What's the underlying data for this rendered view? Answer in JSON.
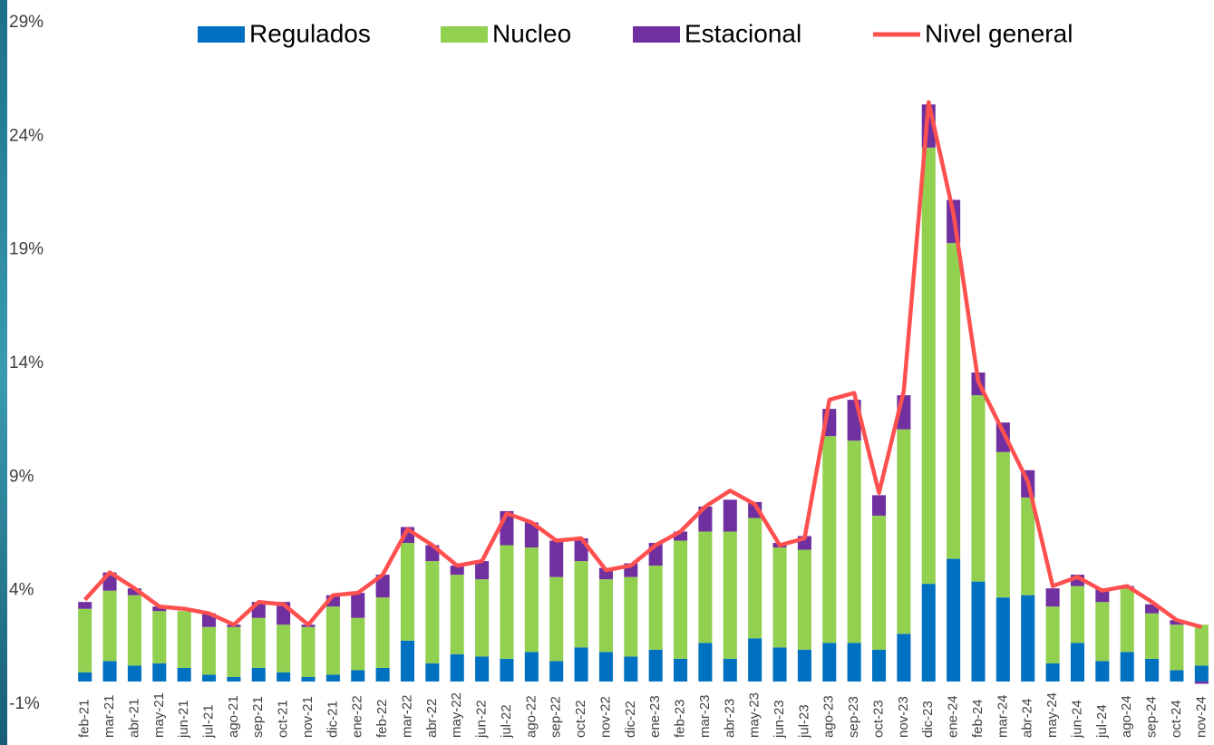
{
  "chart_data": {
    "type": "bar",
    "stacked": true,
    "legend": "top",
    "categories": [
      "feb-21",
      "mar-21",
      "abr-21",
      "may-21",
      "jun-21",
      "jul-21",
      "ago-21",
      "sep-21",
      "oct-21",
      "nov-21",
      "dic-21",
      "ene-22",
      "feb-22",
      "mar-22",
      "abr-22",
      "may-22",
      "jun-22",
      "jul-22",
      "ago-22",
      "sep-22",
      "oct-22",
      "nov-22",
      "dic-22",
      "ene-23",
      "feb-23",
      "mar-23",
      "abr-23",
      "may-23",
      "jun-23",
      "jul-23",
      "ago-23",
      "sep-23",
      "oct-23",
      "nov-23",
      "dic-23",
      "ene-24",
      "feb-24",
      "mar-24",
      "abr-24",
      "may-24",
      "jun-24",
      "jul-24",
      "ago-24",
      "sep-24",
      "oct-24",
      "nov-24"
    ],
    "series": [
      {
        "name": "Regulados",
        "color": "#0070c0",
        "values": [
          0.4,
          0.9,
          0.7,
          0.8,
          0.6,
          0.3,
          0.2,
          0.6,
          0.4,
          0.2,
          0.3,
          0.5,
          0.6,
          1.8,
          0.8,
          1.2,
          1.1,
          1.0,
          1.3,
          0.9,
          1.5,
          1.3,
          1.1,
          1.4,
          1.0,
          1.7,
          1.0,
          1.9,
          1.5,
          1.4,
          1.7,
          1.7,
          1.4,
          2.1,
          4.3,
          5.4,
          4.4,
          3.7,
          3.8,
          0.8,
          1.7,
          0.9,
          1.3,
          1.0,
          0.5,
          0.7
        ]
      },
      {
        "name": "Nucleo",
        "color": "#92d050",
        "values": [
          2.8,
          3.1,
          3.1,
          2.3,
          2.5,
          2.1,
          2.2,
          2.2,
          2.1,
          2.2,
          3.0,
          2.3,
          3.1,
          4.3,
          4.5,
          3.5,
          3.4,
          5.0,
          4.6,
          3.7,
          3.8,
          3.2,
          3.5,
          3.7,
          5.2,
          4.9,
          5.6,
          5.3,
          4.4,
          4.4,
          9.1,
          8.9,
          5.9,
          9.0,
          19.2,
          13.9,
          8.2,
          6.4,
          4.3,
          2.5,
          2.5,
          2.6,
          2.8,
          2.0,
          2.0,
          1.8
        ]
      },
      {
        "name": "Estacional",
        "color": "#7030a0",
        "values": [
          0.3,
          0.8,
          0.3,
          0.2,
          0.0,
          0.6,
          0.1,
          0.7,
          1.0,
          0.1,
          0.5,
          1.1,
          1.0,
          0.7,
          0.7,
          0.4,
          0.8,
          1.5,
          1.1,
          1.6,
          1.0,
          0.5,
          0.6,
          1.0,
          0.4,
          1.1,
          1.4,
          0.7,
          0.2,
          0.6,
          1.2,
          1.8,
          0.9,
          1.5,
          1.9,
          1.9,
          1.0,
          1.3,
          1.2,
          0.8,
          0.5,
          0.6,
          0.1,
          0.4,
          0.2,
          -0.1
        ]
      },
      {
        "name": "Nivel general",
        "color": "#ff5050",
        "type": "line",
        "values": [
          3.6,
          4.8,
          4.1,
          3.3,
          3.2,
          3.0,
          2.5,
          3.5,
          3.4,
          2.5,
          3.8,
          3.9,
          4.7,
          6.7,
          6.0,
          5.1,
          5.3,
          7.4,
          7.0,
          6.2,
          6.3,
          4.9,
          5.1,
          6.0,
          6.6,
          7.7,
          8.4,
          7.8,
          6.0,
          6.3,
          12.4,
          12.7,
          8.3,
          12.8,
          25.5,
          20.6,
          13.2,
          11.0,
          8.8,
          4.2,
          4.6,
          4.0,
          4.2,
          3.5,
          2.7,
          2.4
        ]
      }
    ],
    "ylim": [
      -1,
      29
    ],
    "yticks": [
      {
        "value": -1,
        "label": "-1%"
      },
      {
        "value": 4,
        "label": "4%"
      },
      {
        "value": 9,
        "label": "9%"
      },
      {
        "value": 14,
        "label": "14%"
      },
      {
        "value": 19,
        "label": "19%"
      },
      {
        "value": 24,
        "label": "24%"
      },
      {
        "value": 29,
        "label": "29%"
      }
    ],
    "grid": false
  }
}
